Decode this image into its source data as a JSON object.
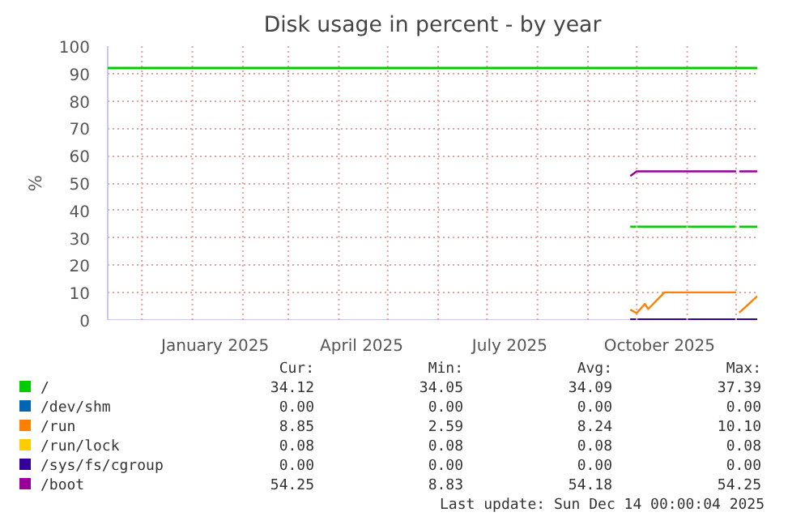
{
  "chart_data": {
    "type": "line",
    "title": "Disk usage in percent - by year",
    "ylabel": "%",
    "x": [
      "2025-09-27",
      "2025-10-01",
      "2025-10-06",
      "2025-10-08",
      "2025-10-18",
      "2025-12-01",
      "2025-12-02",
      "2025-12-03",
      "2025-12-14"
    ],
    "series": [
      {
        "name": "/",
        "color": "#00cc00",
        "values": [
          34.1,
          34.1,
          34.1,
          34.1,
          34.1,
          34.1,
          null,
          34.1,
          34.1
        ]
      },
      {
        "name": "/dev/shm",
        "color": "#0066b3",
        "values": [
          null,
          null,
          null,
          null,
          null,
          null,
          null,
          null,
          null
        ]
      },
      {
        "name": "/run",
        "color": "#ff8000",
        "values": [
          3.8,
          2.5,
          5.9,
          4,
          10.1,
          10.1,
          null,
          2.7,
          8.7
        ]
      },
      {
        "name": "/run/lock",
        "color": "#ffcc00",
        "values": [
          null,
          null,
          null,
          null,
          null,
          null,
          null,
          null,
          null
        ]
      },
      {
        "name": "/sys/fs/cgroup",
        "color": "#330099",
        "values": [
          0,
          0,
          0,
          0,
          0,
          0,
          0,
          0,
          0
        ]
      },
      {
        "name": "/boot",
        "color": "#990099",
        "values": [
          52.6,
          54.3,
          54.3,
          54.3,
          54.3,
          54.3,
          null,
          54.3,
          54.3
        ]
      }
    ],
    "xlim": [
      "2024-11-10",
      "2025-12-14"
    ],
    "xticks": [
      {
        "value": "2024-12-01",
        "label": null
      },
      {
        "value": "2025-01-01",
        "label": null
      },
      {
        "value": "2025-01-15",
        "label": "January 2025"
      },
      {
        "value": "2025-02-01",
        "label": null
      },
      {
        "value": "2025-03-01",
        "label": null
      },
      {
        "value": "2025-04-01",
        "label": null
      },
      {
        "value": "2025-04-15",
        "label": "April 2025"
      },
      {
        "value": "2025-05-01",
        "label": null
      },
      {
        "value": "2025-06-01",
        "label": null
      },
      {
        "value": "2025-07-01",
        "label": null
      },
      {
        "value": "2025-07-15",
        "label": "July 2025"
      },
      {
        "value": "2025-08-01",
        "label": null
      },
      {
        "value": "2025-09-01",
        "label": null
      },
      {
        "value": "2025-10-01",
        "label": null
      },
      {
        "value": "2025-10-15",
        "label": "October 2025"
      },
      {
        "value": "2025-11-01",
        "label": null
      },
      {
        "value": "2025-12-01",
        "label": null
      }
    ],
    "ylim": [
      0,
      100
    ],
    "yticks": [
      0,
      10,
      20,
      30,
      40,
      50,
      60,
      70,
      80,
      90,
      100
    ],
    "ref_lines": [
      {
        "axis": "y",
        "value": 92,
        "label": null,
        "color": "#00cc00"
      }
    ],
    "grid": true,
    "legend": "bottom",
    "annotations": [
      "Cur:",
      "Min:",
      "Avg:",
      "Max:",
      "34.12",
      "34.05",
      "34.09",
      "37.39",
      "0.00",
      "0.00",
      "0.00",
      "0.00",
      "8.85",
      "2.59",
      "8.24",
      "10.10",
      "0.08",
      "0.08",
      "0.08",
      "0.08",
      "0.00",
      "0.00",
      "0.00",
      "0.00",
      "54.25",
      "8.83",
      "54.18",
      "54.25",
      "Last update: Sun Dec 14 00:00:04 2025"
    ]
  }
}
